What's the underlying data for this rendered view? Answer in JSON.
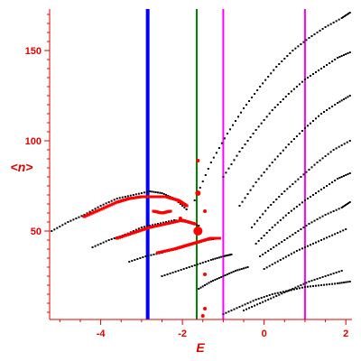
{
  "chart_data": {
    "type": "scatter",
    "title": "",
    "xlabel": "E",
    "ylabel": "<n>",
    "xlim": [
      -5.25,
      2.15
    ],
    "ylim": [
      1,
      173
    ],
    "x_ticks": [
      -4,
      -2,
      0,
      2
    ],
    "x_tick_labels": [
      "-4",
      "-2",
      "0",
      "2"
    ],
    "y_ticks": [
      50,
      100,
      150
    ],
    "y_tick_labels": [
      "50",
      "100",
      "150"
    ],
    "grid": false,
    "legend": "none",
    "colors": {
      "axis": "#e00000",
      "points": "#000000",
      "highlight": "#ff0000",
      "line_blue": "#0000ff",
      "line_green": "#008000",
      "line_magenta": "#ff00ff"
    },
    "vertical_lines": [
      {
        "x": -2.85,
        "color": "#0000ff",
        "width": 4
      },
      {
        "x": -1.65,
        "color": "#008000",
        "width": 2
      },
      {
        "x": -1.0,
        "color": "#ff00ff",
        "width": 2
      },
      {
        "x": 1.0,
        "color": "#ff00ff",
        "width": 2
      }
    ],
    "series": [
      {
        "x": [
          -5.2,
          -4.8,
          -4.4,
          -4.0,
          -3.6,
          -3.2,
          -2.8,
          -2.5,
          -2.2,
          -1.9
        ],
        "y": [
          50,
          55,
          59,
          64,
          68,
          70,
          72,
          71,
          68,
          62
        ]
      },
      {
        "x": [
          -4.2,
          -3.8,
          -3.4,
          -3.0,
          -2.6,
          -2.2,
          -1.9,
          -1.6
        ],
        "y": [
          41,
          45,
          48,
          52,
          54,
          56,
          55,
          53
        ]
      },
      {
        "x": [
          -3.3,
          -2.9,
          -2.5,
          -2.1,
          -1.7,
          -1.4,
          -1.1
        ],
        "y": [
          33,
          36,
          38,
          41,
          43,
          45,
          46
        ]
      },
      {
        "x": [
          -2.5,
          -2.1,
          -1.7,
          -1.3,
          -1.0,
          -0.8
        ],
        "y": [
          25,
          28,
          31,
          34,
          36,
          37
        ]
      },
      {
        "x": [
          -1.6,
          -1.3,
          -1.0,
          -0.7,
          -0.4
        ],
        "y": [
          18,
          22,
          25,
          28,
          30
        ]
      },
      {
        "x": [
          -1.7,
          -1.3,
          -0.9,
          -0.5,
          -0.1,
          0.3,
          0.7,
          1.1,
          1.5,
          1.9,
          2.1
        ],
        "y": [
          67,
          88,
          104,
          118,
          130,
          141,
          150,
          157,
          163,
          168,
          171
        ]
      },
      {
        "x": [
          -1.0,
          -0.6,
          -0.2,
          0.2,
          0.6,
          1.0,
          1.4,
          1.8,
          2.1
        ],
        "y": [
          80,
          94,
          106,
          117,
          126,
          134,
          140,
          146,
          149
        ]
      },
      {
        "x": [
          -0.6,
          -0.2,
          0.2,
          0.6,
          1.0,
          1.4,
          1.8,
          2.1
        ],
        "y": [
          64,
          77,
          88,
          98,
          107,
          115,
          121,
          125
        ]
      },
      {
        "x": [
          -0.3,
          0.1,
          0.5,
          0.9,
          1.3,
          1.7,
          2.1
        ],
        "y": [
          52,
          63,
          72,
          80,
          88,
          95,
          100
        ]
      },
      {
        "x": [
          -0.2,
          0.2,
          0.6,
          1.0,
          1.4,
          1.8,
          2.1
        ],
        "y": [
          43,
          52,
          60,
          67,
          73,
          79,
          82
        ]
      },
      {
        "x": [
          -0.1,
          0.3,
          0.7,
          1.1,
          1.5,
          1.9,
          2.1
        ],
        "y": [
          36,
          42,
          48,
          54,
          59,
          63,
          66
        ]
      },
      {
        "x": [
          0.0,
          0.4,
          0.8,
          1.2,
          1.6,
          2.0
        ],
        "y": [
          29,
          34,
          39,
          43,
          47,
          51
        ]
      },
      {
        "x": [
          -1.0,
          -0.6,
          -0.2,
          0.2,
          0.6,
          1.0,
          1.4,
          1.8,
          2.1
        ],
        "y": [
          4,
          8,
          12,
          15,
          17,
          19,
          20,
          21,
          22
        ]
      },
      {
        "x": [
          -0.5,
          -0.1,
          0.3,
          0.7,
          1.1,
          1.5,
          1.9
        ],
        "y": [
          6,
          10,
          14,
          18,
          22,
          25,
          28
        ]
      }
    ],
    "highlight_points": [
      {
        "x": -1.62,
        "y": 50,
        "size": 5
      },
      {
        "x": -1.62,
        "y": 71,
        "size": 3
      },
      {
        "x": -1.62,
        "y": 89,
        "size": 2
      },
      {
        "x": -1.45,
        "y": 26,
        "size": 2
      },
      {
        "x": -1.45,
        "y": 7,
        "size": 2
      },
      {
        "x": -1.45,
        "y": 61,
        "size": 2
      },
      {
        "x": -1.5,
        "y": 3,
        "size": 2
      },
      {
        "x": -2.05,
        "y": 57,
        "size": 2
      }
    ],
    "highlight_segments": [
      {
        "x": [
          -4.4,
          -4.0,
          -3.6,
          -3.3,
          -3.0,
          -2.7,
          -2.4,
          -2.1,
          -1.9
        ],
        "y": [
          58,
          62,
          66,
          68,
          69,
          69,
          69,
          67,
          64
        ]
      },
      {
        "x": [
          -3.6,
          -3.2,
          -2.8,
          -2.4,
          -2.0,
          -1.7
        ],
        "y": [
          46,
          49,
          52,
          54,
          56,
          54
        ]
      },
      {
        "x": [
          -2.6,
          -2.2,
          -1.9,
          -1.6,
          -1.3,
          -1.1
        ],
        "y": [
          38,
          40,
          42,
          44,
          46,
          46
        ]
      },
      {
        "x": [
          -2.7,
          -2.5,
          -2.3
        ],
        "y": [
          61,
          60,
          61
        ]
      }
    ]
  }
}
